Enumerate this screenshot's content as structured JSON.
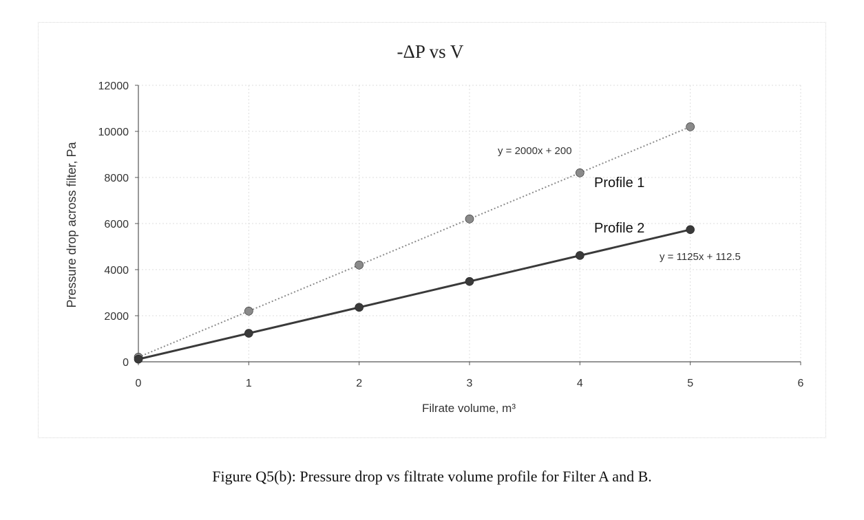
{
  "chart_data": {
    "type": "scatter",
    "title": "-ΔP vs V",
    "xlabel": "Filrate volume, m³",
    "ylabel": "Pressure drop across filter, Pa",
    "xlim": [
      0,
      6
    ],
    "ylim": [
      0,
      12000
    ],
    "x_ticks": [
      0,
      1,
      2,
      3,
      4,
      5,
      6
    ],
    "y_ticks": [
      0,
      2000,
      4000,
      6000,
      8000,
      10000,
      12000
    ],
    "grid": true,
    "series": [
      {
        "name": "Profile 1",
        "x": [
          0,
          1,
          2,
          3,
          4,
          5
        ],
        "y": [
          200,
          2200,
          4200,
          6200,
          8200,
          10200
        ],
        "trendline": "y = 2000x + 200",
        "line_style": "dotted",
        "color": "#8a8a8a"
      },
      {
        "name": "Profile 2",
        "x": [
          0,
          1,
          2,
          3,
          4,
          5
        ],
        "y": [
          112.5,
          1237.5,
          2362.5,
          3487.5,
          4612.5,
          5737.5
        ],
        "trendline": "y = 1125x + 112.5",
        "line_style": "solid",
        "color": "#3a3a3a"
      }
    ]
  },
  "caption": "Figure Q5(b): Pressure drop vs filtrate volume profile for Filter A and B."
}
